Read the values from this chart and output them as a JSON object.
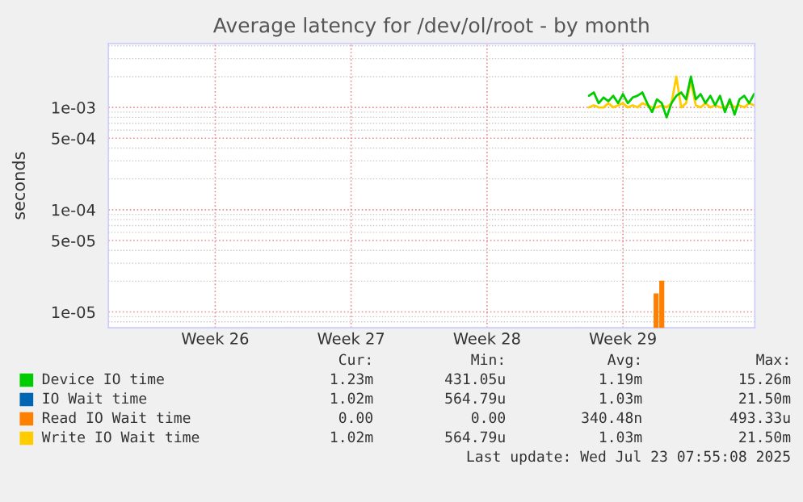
{
  "chart_data": {
    "type": "line",
    "title": "Average latency for /dev/ol/root - by month",
    "ylabel": "seconds",
    "log": true,
    "grid": true,
    "legend": "bottom",
    "marker": "none",
    "line_style": "solid",
    "xlim": [
      "2025-06-21T00:00",
      "2025-07-24T07:00"
    ],
    "ylim": [
      7e-06,
      0.0042
    ],
    "xticks": [
      {
        "value": "2025-06-26T12:00",
        "label": "Week 26"
      },
      {
        "value": "2025-07-03T12:00",
        "label": "Week 27"
      },
      {
        "value": "2025-07-10T12:00",
        "label": "Week 28"
      },
      {
        "value": "2025-07-17T12:00",
        "label": "Week 29"
      }
    ],
    "yticks": [
      {
        "value": 1e-05,
        "label": "1e-05"
      },
      {
        "value": 5e-05,
        "label": "5e-05"
      },
      {
        "value": 0.0001,
        "label": "1e-04"
      },
      {
        "value": 0.0005,
        "label": "5e-04"
      },
      {
        "value": 0.001,
        "label": "1e-03"
      }
    ],
    "x": [
      "2025-07-15T18:00",
      "2025-07-16T00:00",
      "2025-07-16T06:00",
      "2025-07-16T12:00",
      "2025-07-16T18:00",
      "2025-07-17T00:00",
      "2025-07-17T06:00",
      "2025-07-17T12:00",
      "2025-07-17T18:00",
      "2025-07-18T00:00",
      "2025-07-18T06:00",
      "2025-07-18T12:00",
      "2025-07-18T18:00",
      "2025-07-19T00:00",
      "2025-07-19T06:00",
      "2025-07-19T12:00",
      "2025-07-19T18:00",
      "2025-07-20T00:00",
      "2025-07-20T06:00",
      "2025-07-20T12:00",
      "2025-07-20T18:00",
      "2025-07-21T00:00",
      "2025-07-21T06:00",
      "2025-07-21T12:00",
      "2025-07-21T18:00",
      "2025-07-22T00:00",
      "2025-07-22T06:00",
      "2025-07-22T12:00",
      "2025-07-22T18:00",
      "2025-07-23T00:00",
      "2025-07-23T06:00",
      "2025-07-23T12:00",
      "2025-07-23T18:00",
      "2025-07-24T00:00",
      "2025-07-24T06:00"
    ],
    "series": [
      {
        "name": "Device IO time",
        "color": "#00cc00",
        "values": [
          0.0013,
          0.0014,
          0.0011,
          0.00125,
          0.00115,
          0.0013,
          0.0011,
          0.00135,
          0.0011,
          0.00125,
          0.0013,
          0.0014,
          0.0011,
          0.0009,
          0.0012,
          0.0011,
          0.0008,
          0.0011,
          0.0013,
          0.0014,
          0.0012,
          0.002,
          0.0012,
          0.00135,
          0.0011,
          0.0013,
          0.00105,
          0.0013,
          0.0009,
          0.0012,
          0.00085,
          0.0012,
          0.0013,
          0.0011,
          0.00135
        ]
      },
      {
        "name": "IO Wait time",
        "color": "#0066b3",
        "values": [
          null,
          null,
          null,
          null,
          null,
          null,
          null,
          null,
          null,
          null,
          null,
          null,
          null,
          null,
          null,
          null,
          null,
          null,
          null,
          null,
          null,
          null,
          null,
          null,
          null,
          null,
          null,
          null,
          null,
          null,
          null,
          null,
          null,
          null,
          null
        ]
      },
      {
        "name": "Read IO Wait time",
        "color": "#ff8000",
        "type": "bar",
        "x": [
          "2025-07-19T05:00",
          "2025-07-19T12:00"
        ],
        "values": [
          1.5e-05,
          2e-05
        ]
      },
      {
        "name": "Write IO Wait time",
        "color": "#ffcc00",
        "values": [
          0.001,
          0.00105,
          0.001,
          0.001,
          0.0011,
          0.001,
          0.00105,
          0.0011,
          0.001,
          0.00105,
          0.001,
          0.0011,
          0.00105,
          0.001,
          0.001,
          0.00105,
          0.001,
          0.0011,
          0.002,
          0.001,
          0.0011,
          0.0018,
          0.00105,
          0.001,
          0.0011,
          0.001,
          0.00105,
          0.001,
          0.001,
          0.0011,
          0.001,
          0.00105,
          0.001,
          0.0011,
          0.00105
        ]
      }
    ],
    "annotations": [
      "Cur:",
      "Min:",
      "Avg:",
      "Max:",
      "1.23m",
      "431.05u",
      "1.19m",
      "15.26m",
      "1.02m",
      "564.79u",
      "1.03m",
      "21.50m",
      "0.00",
      "0.00",
      "340.48n",
      "493.33u",
      "1.02m",
      "564.79u",
      "1.03m",
      "21.50m",
      "Last update: Wed Jul 23 07:55:08 2025"
    ]
  }
}
